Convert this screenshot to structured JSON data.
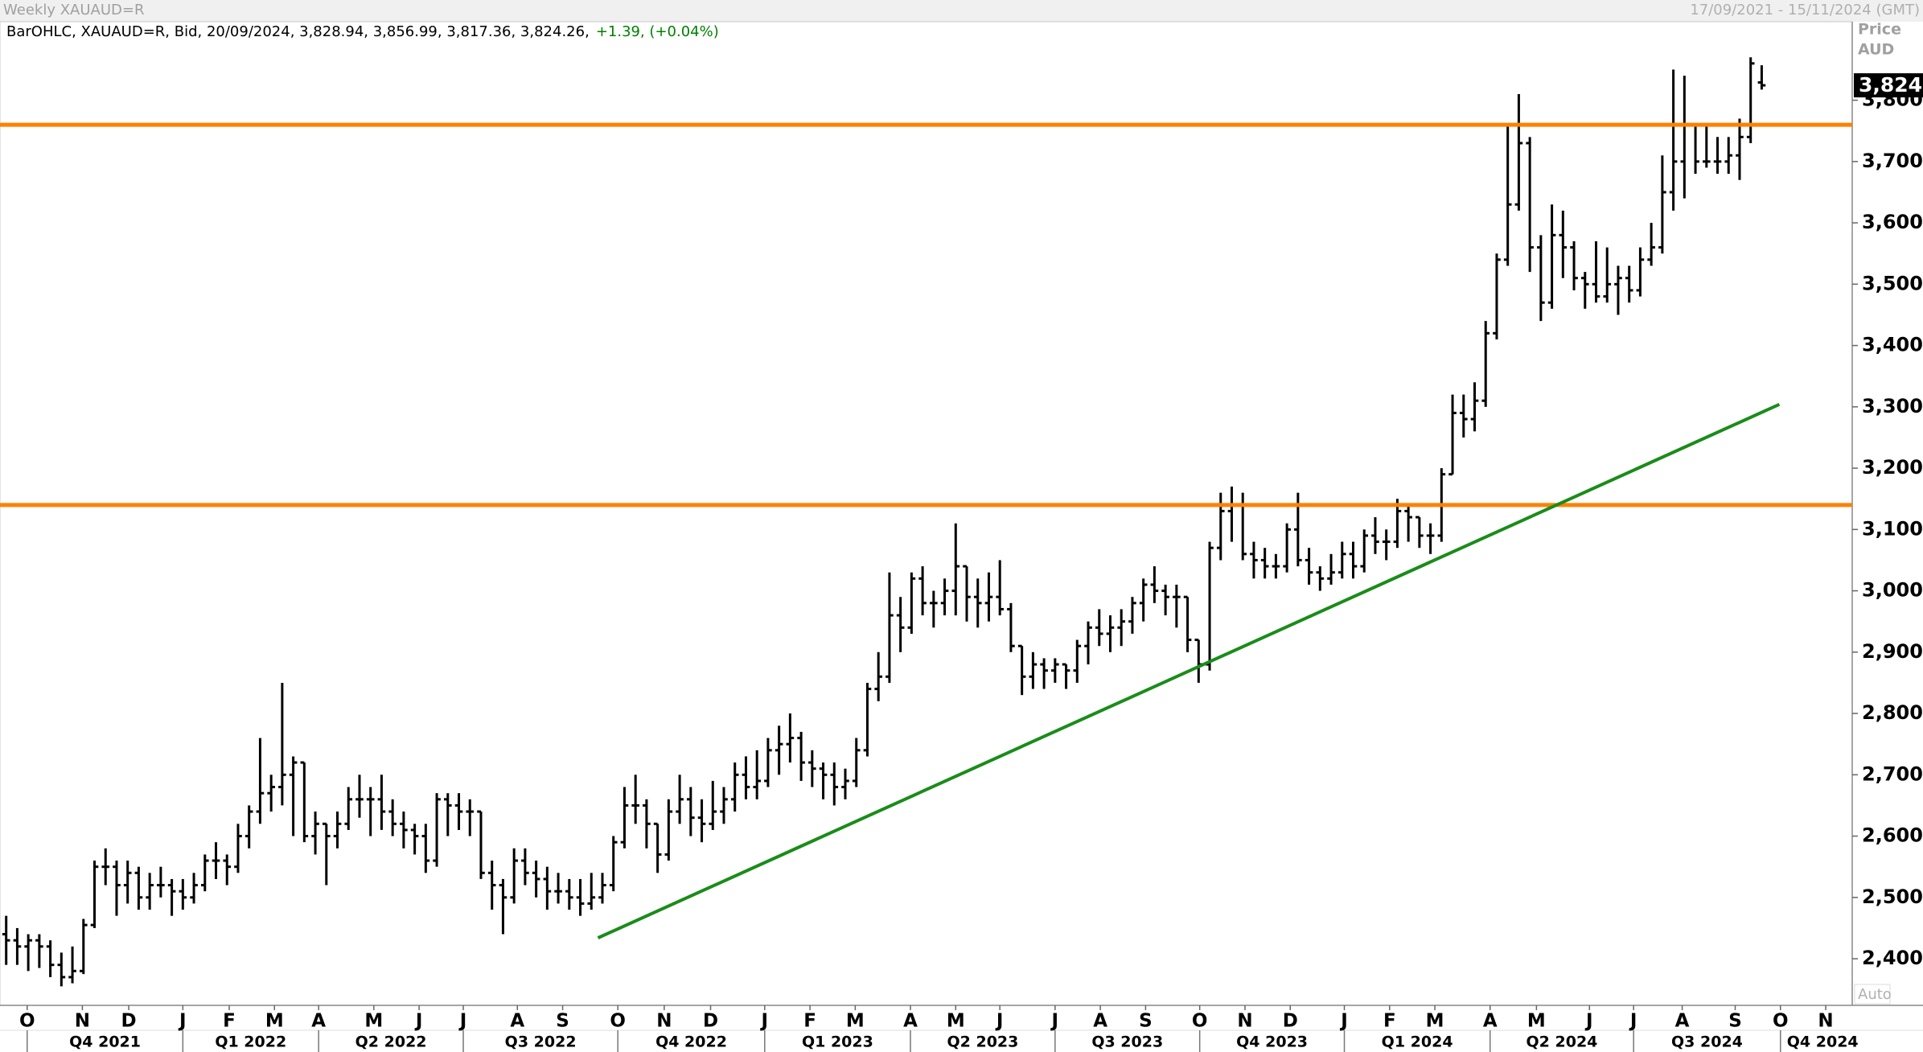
{
  "chart_data": {
    "type": "ohlc",
    "title": "Weekly XAUAUD=R",
    "date_range": "17/09/2021 - 15/11/2024 (GMT)",
    "legend": "BarOHLC, XAUAUD=R, Bid, 20/09/2024, 3,828.94, 3,856.99, 3,817.36, 3,824.26,",
    "change": "+1.39, (+0.04%)",
    "change_color": "#008000",
    "y_axis_title": "Price",
    "currency": "AUD",
    "scale_mode": "Auto",
    "bar_color": "#000000",
    "grid": false,
    "ylim": [
      2324,
      3928
    ],
    "yticks": [
      {
        "value": 2400,
        "label": "2,400"
      },
      {
        "value": 2500,
        "label": "2,500"
      },
      {
        "value": 2600,
        "label": "2,600"
      },
      {
        "value": 2700,
        "label": "2,700"
      },
      {
        "value": 2800,
        "label": "2,800"
      },
      {
        "value": 2900,
        "label": "2,900"
      },
      {
        "value": 3000,
        "label": "3,000"
      },
      {
        "value": 3100,
        "label": "3,100"
      },
      {
        "value": 3200,
        "label": "3,200"
      },
      {
        "value": 3300,
        "label": "3,300"
      },
      {
        "value": 3400,
        "label": "3,400"
      },
      {
        "value": 3500,
        "label": "3,500"
      },
      {
        "value": 3600,
        "label": "3,600"
      },
      {
        "value": 3700,
        "label": "3,700"
      },
      {
        "value": 3800,
        "label": "3,800"
      }
    ],
    "xlim": [
      -0.56,
      167.2
    ],
    "xticks": [
      {
        "value": 1.9,
        "label": "O"
      },
      {
        "value": 6.9,
        "label": "N"
      },
      {
        "value": 11.1,
        "label": "D"
      },
      {
        "value": 16.0,
        "label": "J"
      },
      {
        "value": 20.2,
        "label": "F"
      },
      {
        "value": 24.3,
        "label": "M"
      },
      {
        "value": 28.3,
        "label": "A"
      },
      {
        "value": 33.3,
        "label": "M"
      },
      {
        "value": 37.4,
        "label": "J"
      },
      {
        "value": 41.4,
        "label": "J"
      },
      {
        "value": 46.3,
        "label": "A"
      },
      {
        "value": 50.4,
        "label": "S"
      },
      {
        "value": 55.4,
        "label": "O"
      },
      {
        "value": 59.6,
        "label": "N"
      },
      {
        "value": 63.8,
        "label": "D"
      },
      {
        "value": 68.7,
        "label": "J"
      },
      {
        "value": 72.8,
        "label": "F"
      },
      {
        "value": 76.9,
        "label": "M"
      },
      {
        "value": 81.9,
        "label": "A"
      },
      {
        "value": 86.0,
        "label": "M"
      },
      {
        "value": 90.0,
        "label": "J"
      },
      {
        "value": 95.0,
        "label": "J"
      },
      {
        "value": 99.1,
        "label": "A"
      },
      {
        "value": 103.2,
        "label": "S"
      },
      {
        "value": 108.1,
        "label": "O"
      },
      {
        "value": 112.2,
        "label": "N"
      },
      {
        "value": 116.3,
        "label": "D"
      },
      {
        "value": 121.2,
        "label": "J"
      },
      {
        "value": 125.3,
        "label": "F"
      },
      {
        "value": 129.4,
        "label": "M"
      },
      {
        "value": 134.4,
        "label": "A"
      },
      {
        "value": 138.6,
        "label": "M"
      },
      {
        "value": 143.4,
        "label": "J"
      },
      {
        "value": 147.4,
        "label": "J"
      },
      {
        "value": 151.8,
        "label": "A"
      },
      {
        "value": 156.6,
        "label": "S"
      },
      {
        "value": 160.7,
        "label": "O"
      },
      {
        "value": 164.8,
        "label": "N"
      }
    ],
    "quarters": [
      {
        "value": 1.9,
        "label": "Q4 2021"
      },
      {
        "value": 16.0,
        "label": "Q1 2022"
      },
      {
        "value": 28.3,
        "label": "Q2 2022"
      },
      {
        "value": 41.4,
        "label": "Q3 2022"
      },
      {
        "value": 55.4,
        "label": "Q4 2022"
      },
      {
        "value": 68.7,
        "label": "Q1 2023"
      },
      {
        "value": 81.9,
        "label": "Q2 2023"
      },
      {
        "value": 95.0,
        "label": "Q3 2023"
      },
      {
        "value": 108.1,
        "label": "Q4 2023"
      },
      {
        "value": 121.2,
        "label": "Q1 2024"
      },
      {
        "value": 134.4,
        "label": "Q2 2024"
      },
      {
        "value": 147.4,
        "label": "Q3 2024"
      },
      {
        "value": 160.7,
        "label": "Q4 2024"
      }
    ],
    "hlines": [
      {
        "value": 3760,
        "color": "#ff8000"
      },
      {
        "value": 3140,
        "color": "#ff8000"
      }
    ],
    "trendline": {
      "x": [
        53.6,
        160.6
      ],
      "values": [
        2434,
        3304
      ],
      "color": "#1a8c1a"
    },
    "last_price": {
      "value": 3824.26,
      "label": "3,824."
    },
    "ohlc": [
      [
        2440,
        2470,
        2390,
        2430
      ],
      [
        2430,
        2450,
        2390,
        2420
      ],
      [
        2420,
        2440,
        2380,
        2430
      ],
      [
        2430,
        2440,
        2385,
        2420
      ],
      [
        2420,
        2430,
        2370,
        2390
      ],
      [
        2390,
        2410,
        2355,
        2370
      ],
      [
        2370,
        2420,
        2360,
        2380
      ],
      [
        2380,
        2465,
        2375,
        2455
      ],
      [
        2455,
        2560,
        2450,
        2550
      ],
      [
        2550,
        2580,
        2520,
        2550
      ],
      [
        2550,
        2560,
        2470,
        2520
      ],
      [
        2520,
        2560,
        2490,
        2540
      ],
      [
        2540,
        2550,
        2480,
        2500
      ],
      [
        2500,
        2540,
        2480,
        2520
      ],
      [
        2520,
        2550,
        2500,
        2520
      ],
      [
        2520,
        2530,
        2470,
        2510
      ],
      [
        2510,
        2530,
        2480,
        2500
      ],
      [
        2500,
        2540,
        2490,
        2520
      ],
      [
        2520,
        2570,
        2510,
        2560
      ],
      [
        2560,
        2590,
        2530,
        2560
      ],
      [
        2560,
        2570,
        2520,
        2550
      ],
      [
        2550,
        2620,
        2540,
        2600
      ],
      [
        2600,
        2650,
        2580,
        2640
      ],
      [
        2640,
        2760,
        2620,
        2670
      ],
      [
        2670,
        2700,
        2640,
        2680
      ],
      [
        2680,
        2850,
        2650,
        2700
      ],
      [
        2700,
        2730,
        2600,
        2720
      ],
      [
        2720,
        2720,
        2590,
        2600
      ],
      [
        2600,
        2640,
        2570,
        2620
      ],
      [
        2620,
        2620,
        2520,
        2600
      ],
      [
        2600,
        2640,
        2580,
        2620
      ],
      [
        2620,
        2680,
        2610,
        2660
      ],
      [
        2660,
        2700,
        2630,
        2660
      ],
      [
        2660,
        2680,
        2600,
        2660
      ],
      [
        2660,
        2700,
        2610,
        2640
      ],
      [
        2640,
        2660,
        2600,
        2620
      ],
      [
        2620,
        2640,
        2580,
        2610
      ],
      [
        2610,
        2620,
        2570,
        2600
      ],
      [
        2600,
        2620,
        2540,
        2560
      ],
      [
        2560,
        2670,
        2550,
        2660
      ],
      [
        2660,
        2670,
        2600,
        2650
      ],
      [
        2650,
        2670,
        2610,
        2640
      ],
      [
        2640,
        2660,
        2600,
        2640
      ],
      [
        2640,
        2640,
        2530,
        2540
      ],
      [
        2540,
        2560,
        2480,
        2520
      ],
      [
        2520,
        2530,
        2440,
        2500
      ],
      [
        2500,
        2580,
        2490,
        2560
      ],
      [
        2560,
        2580,
        2520,
        2540
      ],
      [
        2540,
        2560,
        2500,
        2530
      ],
      [
        2530,
        2550,
        2480,
        2510
      ],
      [
        2510,
        2540,
        2490,
        2510
      ],
      [
        2510,
        2530,
        2480,
        2500
      ],
      [
        2500,
        2530,
        2470,
        2490
      ],
      [
        2490,
        2540,
        2480,
        2500
      ],
      [
        2500,
        2540,
        2490,
        2520
      ],
      [
        2520,
        2600,
        2510,
        2590
      ],
      [
        2590,
        2680,
        2580,
        2650
      ],
      [
        2650,
        2700,
        2620,
        2650
      ],
      [
        2650,
        2660,
        2580,
        2620
      ],
      [
        2620,
        2620,
        2540,
        2570
      ],
      [
        2570,
        2660,
        2560,
        2640
      ],
      [
        2640,
        2700,
        2620,
        2660
      ],
      [
        2660,
        2680,
        2600,
        2630
      ],
      [
        2630,
        2660,
        2590,
        2620
      ],
      [
        2620,
        2690,
        2610,
        2640
      ],
      [
        2640,
        2680,
        2620,
        2660
      ],
      [
        2660,
        2720,
        2640,
        2700
      ],
      [
        2700,
        2730,
        2660,
        2680
      ],
      [
        2680,
        2740,
        2660,
        2690
      ],
      [
        2690,
        2760,
        2680,
        2740
      ],
      [
        2740,
        2780,
        2700,
        2750
      ],
      [
        2750,
        2800,
        2720,
        2760
      ],
      [
        2760,
        2770,
        2690,
        2720
      ],
      [
        2720,
        2740,
        2680,
        2710
      ],
      [
        2710,
        2720,
        2660,
        2700
      ],
      [
        2700,
        2720,
        2650,
        2680
      ],
      [
        2680,
        2710,
        2660,
        2690
      ],
      [
        2690,
        2760,
        2680,
        2740
      ],
      [
        2740,
        2850,
        2730,
        2840
      ],
      [
        2840,
        2900,
        2820,
        2860
      ],
      [
        2860,
        3030,
        2850,
        2960
      ],
      [
        2960,
        2990,
        2900,
        2940
      ],
      [
        2940,
        3030,
        2930,
        3020
      ],
      [
        3020,
        3040,
        2960,
        2980
      ],
      [
        2980,
        3000,
        2940,
        2980
      ],
      [
        2980,
        3020,
        2960,
        3000
      ],
      [
        3000,
        3110,
        2960,
        3040
      ],
      [
        3040,
        3040,
        2950,
        2990
      ],
      [
        2990,
        3020,
        2940,
        2980
      ],
      [
        2980,
        3030,
        2950,
        2990
      ],
      [
        2990,
        3050,
        2960,
        2970
      ],
      [
        2970,
        2980,
        2900,
        2910
      ],
      [
        2910,
        2910,
        2830,
        2860
      ],
      [
        2860,
        2900,
        2840,
        2880
      ],
      [
        2880,
        2890,
        2840,
        2870
      ],
      [
        2870,
        2890,
        2850,
        2880
      ],
      [
        2880,
        2880,
        2840,
        2870
      ],
      [
        2870,
        2920,
        2850,
        2910
      ],
      [
        2910,
        2950,
        2880,
        2940
      ],
      [
        2940,
        2970,
        2910,
        2930
      ],
      [
        2930,
        2960,
        2900,
        2940
      ],
      [
        2940,
        2970,
        2910,
        2950
      ],
      [
        2950,
        2990,
        2930,
        2980
      ],
      [
        2980,
        3020,
        2950,
        3010
      ],
      [
        3010,
        3040,
        2980,
        3000
      ],
      [
        3000,
        3010,
        2960,
        2990
      ],
      [
        2990,
        3010,
        2940,
        2990
      ],
      [
        2990,
        2990,
        2900,
        2920
      ],
      [
        2920,
        2920,
        2850,
        2880
      ],
      [
        2880,
        3080,
        2870,
        3070
      ],
      [
        3070,
        3160,
        3050,
        3130
      ],
      [
        3130,
        3170,
        3080,
        3140
      ],
      [
        3140,
        3160,
        3050,
        3060
      ],
      [
        3060,
        3080,
        3020,
        3050
      ],
      [
        3050,
        3070,
        3020,
        3040
      ],
      [
        3040,
        3060,
        3020,
        3040
      ],
      [
        3040,
        3110,
        3030,
        3100
      ],
      [
        3100,
        3160,
        3040,
        3050
      ],
      [
        3050,
        3070,
        3010,
        3030
      ],
      [
        3030,
        3040,
        3000,
        3020
      ],
      [
        3020,
        3060,
        3010,
        3030
      ],
      [
        3030,
        3080,
        3020,
        3060
      ],
      [
        3060,
        3080,
        3020,
        3040
      ],
      [
        3040,
        3100,
        3030,
        3090
      ],
      [
        3090,
        3120,
        3060,
        3080
      ],
      [
        3080,
        3100,
        3050,
        3080
      ],
      [
        3080,
        3150,
        3070,
        3130
      ],
      [
        3130,
        3140,
        3080,
        3120
      ],
      [
        3120,
        3120,
        3070,
        3090
      ],
      [
        3090,
        3110,
        3060,
        3090
      ],
      [
        3090,
        3200,
        3080,
        3190
      ],
      [
        3190,
        3320,
        3190,
        3290
      ],
      [
        3290,
        3320,
        3250,
        3280
      ],
      [
        3280,
        3340,
        3260,
        3310
      ],
      [
        3310,
        3440,
        3300,
        3420
      ],
      [
        3420,
        3550,
        3410,
        3540
      ],
      [
        3540,
        3760,
        3530,
        3630
      ],
      [
        3630,
        3810,
        3620,
        3730
      ],
      [
        3730,
        3740,
        3520,
        3560
      ],
      [
        3560,
        3580,
        3440,
        3470
      ],
      [
        3470,
        3630,
        3460,
        3580
      ],
      [
        3580,
        3620,
        3510,
        3560
      ],
      [
        3560,
        3570,
        3490,
        3510
      ],
      [
        3510,
        3520,
        3460,
        3500
      ],
      [
        3500,
        3570,
        3470,
        3480
      ],
      [
        3480,
        3560,
        3470,
        3500
      ],
      [
        3500,
        3530,
        3450,
        3510
      ],
      [
        3510,
        3530,
        3470,
        3490
      ],
      [
        3490,
        3560,
        3480,
        3540
      ],
      [
        3540,
        3600,
        3530,
        3560
      ],
      [
        3560,
        3710,
        3550,
        3650
      ],
      [
        3650,
        3850,
        3620,
        3700
      ],
      [
        3700,
        3840,
        3640,
        3760
      ],
      [
        3760,
        3760,
        3680,
        3700
      ],
      [
        3700,
        3760,
        3690,
        3700
      ],
      [
        3700,
        3740,
        3680,
        3700
      ],
      [
        3700,
        3740,
        3680,
        3710
      ],
      [
        3710,
        3770,
        3670,
        3740
      ],
      [
        3740,
        3870,
        3730,
        3860
      ],
      [
        3828.94,
        3856.99,
        3817.36,
        3824.26
      ]
    ]
  }
}
